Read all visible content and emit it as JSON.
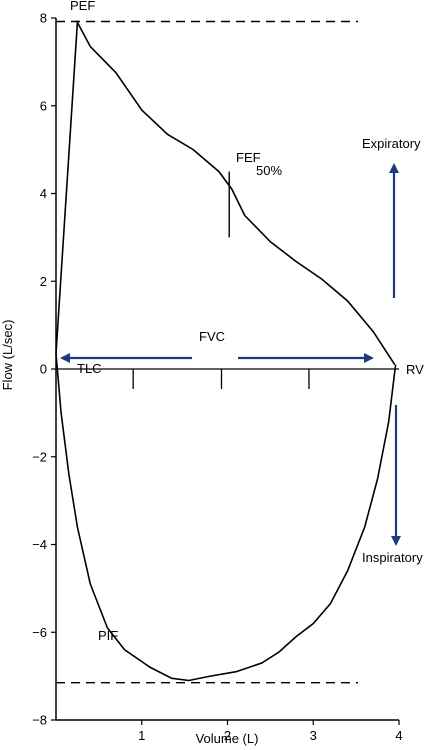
{
  "chart_data": {
    "type": "line",
    "title": "",
    "xlabel": "Volume (L)",
    "ylabel": "Flow (L/sec)",
    "xlim": [
      0,
      4
    ],
    "ylim": [
      -8,
      8
    ],
    "x_ticks": [
      1,
      2,
      3,
      4
    ],
    "y_ticks": [
      8,
      6,
      4,
      2,
      0,
      -2,
      -4,
      -6,
      -8
    ],
    "grid": false,
    "series": [
      {
        "segment": "expiratory",
        "points": [
          [
            0,
            0.35
          ],
          [
            0.25,
            7.9
          ],
          [
            0.4,
            7.35
          ],
          [
            0.7,
            6.75
          ],
          [
            1.0,
            5.9
          ],
          [
            1.3,
            5.35
          ],
          [
            1.6,
            5.0
          ],
          [
            1.9,
            4.5
          ],
          [
            2.05,
            4.1
          ],
          [
            2.2,
            3.5
          ],
          [
            2.5,
            2.9
          ],
          [
            2.8,
            2.45
          ],
          [
            3.1,
            2.05
          ],
          [
            3.4,
            1.55
          ],
          [
            3.7,
            0.85
          ],
          [
            3.95,
            0.1
          ]
        ]
      },
      {
        "segment": "inspiratory",
        "points": [
          [
            0,
            0.35
          ],
          [
            0.06,
            -1.0
          ],
          [
            0.15,
            -2.4
          ],
          [
            0.25,
            -3.6
          ],
          [
            0.4,
            -4.9
          ],
          [
            0.6,
            -5.9
          ],
          [
            0.8,
            -6.4
          ],
          [
            1.1,
            -6.8
          ],
          [
            1.35,
            -7.05
          ],
          [
            1.55,
            -7.1
          ],
          [
            1.8,
            -7.0
          ],
          [
            2.1,
            -6.9
          ],
          [
            2.4,
            -6.7
          ],
          [
            2.6,
            -6.45
          ],
          [
            2.8,
            -6.1
          ],
          [
            3.0,
            -5.8
          ],
          [
            3.2,
            -5.35
          ],
          [
            3.4,
            -4.6
          ],
          [
            3.6,
            -3.6
          ],
          [
            3.75,
            -2.5
          ],
          [
            3.88,
            -1.2
          ],
          [
            3.96,
            0.1
          ]
        ]
      }
    ],
    "reference_lines": [
      {
        "axis": "y",
        "value": 7.92,
        "style": "dashed"
      },
      {
        "axis": "y",
        "value": -7.15,
        "style": "dashed"
      }
    ],
    "volume_ticks_on_zero_line": [
      0.9,
      1.93,
      2.95
    ],
    "fef50_marker": {
      "x": 2.02,
      "y_from": 3.0,
      "y_to": 4.5
    },
    "annotations": {
      "pef": "PEF",
      "fef_line1": "FEF",
      "fef_line2": "50%",
      "fvc": "FVC",
      "tlc": "TLC",
      "rv": "RV",
      "pif": "PIF",
      "expiratory": "Expiratory",
      "inspiratory": "Inspiratory"
    },
    "colors": {
      "curve": "#000000",
      "arrow": "#1f3a7a"
    }
  }
}
